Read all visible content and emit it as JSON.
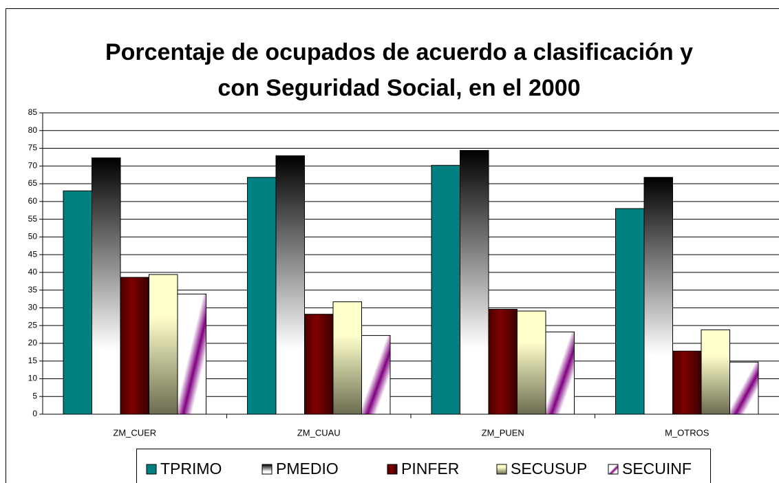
{
  "chart_data": {
    "type": "bar",
    "title": [
      "Porcentaje de ocupados de acuerdo a clasificación y",
      "con Seguridad Social, en el 2000"
    ],
    "categories": [
      "ZM_CUER",
      "ZM_CUAU",
      "ZM_PUEN",
      "M_OTROS"
    ],
    "series": [
      {
        "name": "TPRIMO",
        "color": "#008080",
        "values": [
          63,
          66.8,
          70.2,
          58
        ]
      },
      {
        "name": "PMEDIO",
        "color": "#000000",
        "values": [
          72.3,
          72.9,
          74.4,
          66.8
        ]
      },
      {
        "name": "PINFER",
        "color": "#800000",
        "values": [
          38.6,
          28.2,
          29.6,
          17.8
        ]
      },
      {
        "name": "SECUSUP",
        "color": "#ffffcc",
        "values": [
          39.4,
          31.7,
          29.1,
          23.8
        ]
      },
      {
        "name": "SECUINF",
        "color": "#800080",
        "values": [
          33.9,
          22.2,
          23.2,
          14.7
        ]
      }
    ],
    "ylim": [
      0,
      85
    ],
    "yticks": [
      0,
      5,
      10,
      15,
      20,
      25,
      30,
      35,
      40,
      45,
      50,
      55,
      60,
      65,
      70,
      75,
      80,
      85
    ],
    "grid": true,
    "legend": "bottom"
  }
}
